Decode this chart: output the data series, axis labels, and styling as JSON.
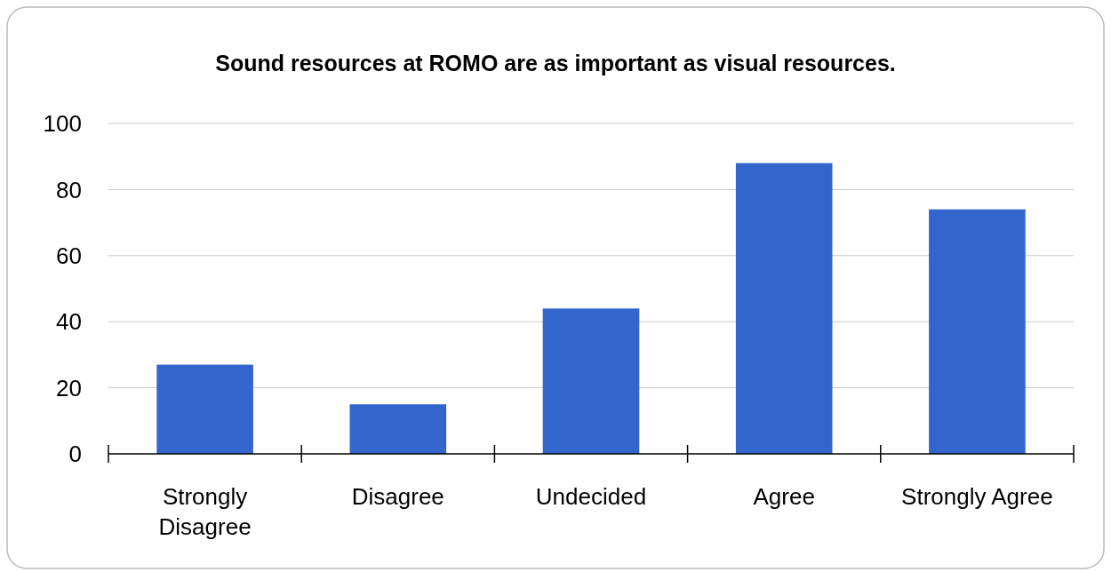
{
  "chart_data": {
    "type": "bar",
    "title": "Sound resources at ROMO are as important as visual resources.",
    "categories": [
      "Strongly Disagree",
      "Disagree",
      "Undecided",
      "Agree",
      "Strongly Agree"
    ],
    "values": [
      27,
      15,
      44,
      88,
      74
    ],
    "color": "#3366cc",
    "ylim": [
      0,
      100
    ],
    "yticks": [
      0,
      20,
      40,
      60,
      80,
      100
    ],
    "grid": "y"
  }
}
